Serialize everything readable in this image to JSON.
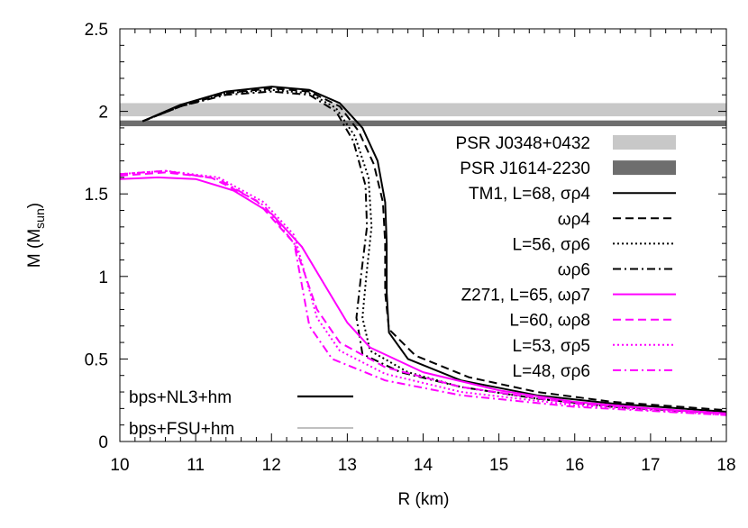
{
  "chart_data": {
    "type": "line",
    "xlabel": "R (km)",
    "ylabel": "M (M",
    "ylabel_sub": "sun",
    "ylabel_close": ")",
    "xlim": [
      10,
      18
    ],
    "ylim": [
      0,
      2.5
    ],
    "xticks": [
      10,
      11,
      12,
      13,
      14,
      15,
      16,
      17,
      18
    ],
    "yticks": [
      0,
      0.5,
      1,
      1.5,
      2,
      2.5
    ],
    "ytick_labels": [
      "0",
      "0.5",
      "1",
      "1.5",
      "2",
      "2.5"
    ],
    "grid": false,
    "legend_position": "right",
    "bands": [
      {
        "name": "PSR J0348+0432",
        "ymin": 1.97,
        "ymax": 2.05,
        "color": "#c8c8c8"
      },
      {
        "name": "PSR J1614-2230",
        "ymin": 1.91,
        "ymax": 1.945,
        "color": "#6e6e6e"
      }
    ],
    "series": [
      {
        "name": "TM1, L=68, σρ4",
        "color": "#000000",
        "dash": "solid",
        "points": [
          [
            10.3,
            1.94
          ],
          [
            10.8,
            2.04
          ],
          [
            11.4,
            2.12
          ],
          [
            12.0,
            2.15
          ],
          [
            12.5,
            2.13
          ],
          [
            12.9,
            2.05
          ],
          [
            13.2,
            1.9
          ],
          [
            13.4,
            1.7
          ],
          [
            13.5,
            1.45
          ],
          [
            13.52,
            1.2
          ],
          [
            13.52,
            0.9
          ],
          [
            13.55,
            0.66
          ],
          [
            13.8,
            0.5
          ],
          [
            14.5,
            0.37
          ],
          [
            15.5,
            0.28
          ],
          [
            16.5,
            0.23
          ],
          [
            18,
            0.18
          ]
        ]
      },
      {
        "name": "ωρ4",
        "color": "#000000",
        "dash": "dashed",
        "points": [
          [
            10.3,
            1.94
          ],
          [
            10.8,
            2.03
          ],
          [
            11.4,
            2.11
          ],
          [
            12.0,
            2.14
          ],
          [
            12.5,
            2.12
          ],
          [
            12.9,
            2.03
          ],
          [
            13.15,
            1.88
          ],
          [
            13.35,
            1.68
          ],
          [
            13.47,
            1.45
          ],
          [
            13.5,
            1.2
          ],
          [
            13.5,
            0.9
          ],
          [
            13.55,
            0.68
          ],
          [
            13.9,
            0.52
          ],
          [
            14.6,
            0.39
          ],
          [
            15.5,
            0.3
          ],
          [
            16.5,
            0.24
          ],
          [
            18,
            0.19
          ]
        ]
      },
      {
        "name": "L=56, σρ6",
        "color": "#000000",
        "dash": "dotted",
        "points": [
          [
            10.3,
            1.94
          ],
          [
            10.8,
            2.03
          ],
          [
            11.4,
            2.11
          ],
          [
            12.0,
            2.13
          ],
          [
            12.5,
            2.11
          ],
          [
            12.85,
            2.02
          ],
          [
            13.1,
            1.85
          ],
          [
            13.28,
            1.6
          ],
          [
            13.32,
            1.3
          ],
          [
            13.25,
            1.0
          ],
          [
            13.2,
            0.75
          ],
          [
            13.3,
            0.55
          ],
          [
            13.8,
            0.42
          ],
          [
            14.5,
            0.33
          ],
          [
            15.5,
            0.26
          ],
          [
            16.5,
            0.21
          ],
          [
            18,
            0.17
          ]
        ]
      },
      {
        "name": "ωρ6",
        "color": "#000000",
        "dash": "dashdot",
        "points": [
          [
            10.3,
            1.94
          ],
          [
            10.8,
            2.03
          ],
          [
            11.4,
            2.1
          ],
          [
            12.0,
            2.12
          ],
          [
            12.5,
            2.1
          ],
          [
            12.85,
            2.0
          ],
          [
            13.08,
            1.82
          ],
          [
            13.24,
            1.55
          ],
          [
            13.26,
            1.3
          ],
          [
            13.18,
            1.0
          ],
          [
            13.12,
            0.75
          ],
          [
            13.2,
            0.53
          ],
          [
            13.7,
            0.42
          ],
          [
            14.5,
            0.33
          ],
          [
            15.5,
            0.26
          ],
          [
            16.5,
            0.21
          ],
          [
            18,
            0.17
          ]
        ]
      },
      {
        "name": "Z271, L=65, ωρ7",
        "color": "#ff00ff",
        "dash": "solid",
        "points": [
          [
            10,
            1.59
          ],
          [
            10.5,
            1.6
          ],
          [
            11,
            1.59
          ],
          [
            11.5,
            1.52
          ],
          [
            12,
            1.38
          ],
          [
            12.4,
            1.18
          ],
          [
            12.7,
            0.95
          ],
          [
            13.0,
            0.72
          ],
          [
            13.3,
            0.57
          ],
          [
            14,
            0.42
          ],
          [
            15,
            0.31
          ],
          [
            16,
            0.24
          ],
          [
            17,
            0.2
          ],
          [
            18,
            0.17
          ]
        ]
      },
      {
        "name": "L=60, ωρ8",
        "color": "#ff00ff",
        "dash": "dashed",
        "points": [
          [
            10,
            1.61
          ],
          [
            10.6,
            1.63
          ],
          [
            11.2,
            1.6
          ],
          [
            11.8,
            1.46
          ],
          [
            12.3,
            1.2
          ],
          [
            12.45,
            1.0
          ],
          [
            12.6,
            0.8
          ],
          [
            12.9,
            0.6
          ],
          [
            13.5,
            0.45
          ],
          [
            14.5,
            0.33
          ],
          [
            16,
            0.23
          ],
          [
            18,
            0.17
          ]
        ]
      },
      {
        "name": "L=53, σρ5",
        "color": "#ff00ff",
        "dash": "dotted",
        "points": [
          [
            10,
            1.62
          ],
          [
            10.6,
            1.64
          ],
          [
            11.3,
            1.6
          ],
          [
            11.9,
            1.45
          ],
          [
            12.3,
            1.25
          ],
          [
            12.45,
            1.0
          ],
          [
            12.6,
            0.75
          ],
          [
            12.9,
            0.55
          ],
          [
            13.5,
            0.41
          ],
          [
            14.5,
            0.3
          ],
          [
            16,
            0.22
          ],
          [
            18,
            0.16
          ]
        ]
      },
      {
        "name": "L=48, σρ6",
        "color": "#ff00ff",
        "dash": "dashdot",
        "points": [
          [
            10,
            1.62
          ],
          [
            10.6,
            1.64
          ],
          [
            11.3,
            1.59
          ],
          [
            11.9,
            1.43
          ],
          [
            12.3,
            1.2
          ],
          [
            12.4,
            0.95
          ],
          [
            12.5,
            0.7
          ],
          [
            12.8,
            0.5
          ],
          [
            13.5,
            0.37
          ],
          [
            14.5,
            0.28
          ],
          [
            16,
            0.21
          ],
          [
            18,
            0.16
          ]
        ]
      }
    ],
    "style_legend": [
      {
        "name": "bps+NL3+hm",
        "color": "#000000",
        "width": "thick"
      },
      {
        "name": "bps+FSU+hm",
        "color": "#808080",
        "width": "thin"
      }
    ]
  }
}
